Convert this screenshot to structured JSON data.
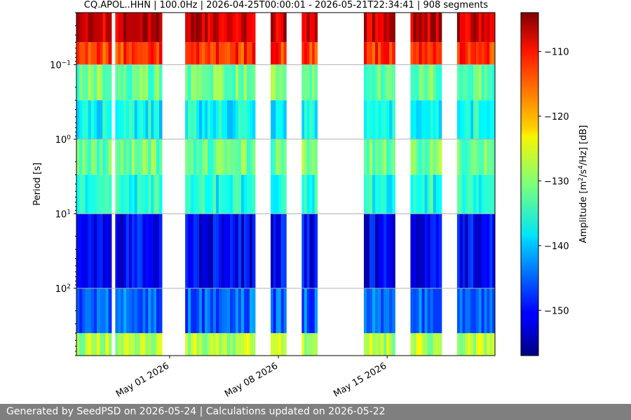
{
  "chart_data": {
    "type": "heatmap",
    "title": "CQ.APOL..HHN | 100.0Hz | 2026-04-25T00:00:01 - 2026-05-21T22:34:41 | 908 segments",
    "ylabel": "Period [s]",
    "y_scale": "log",
    "y_inverted": true,
    "ylim": [
      0.02,
      800
    ],
    "y_tick_labels": [
      {
        "value": 0.1,
        "label": "10^{-1}"
      },
      {
        "value": 1,
        "label": "10^{0}"
      },
      {
        "value": 10,
        "label": "10^{1}"
      },
      {
        "value": 100,
        "label": "10^{2}"
      }
    ],
    "xlim": [
      "2026-04-25T00:00:01",
      "2026-05-21T22:34:41"
    ],
    "x_ticks": [
      {
        "date": "2026-05-01",
        "label": "May 01 2026"
      },
      {
        "date": "2026-05-08",
        "label": "May 08 2026"
      },
      {
        "date": "2026-05-15",
        "label": "May 15 2026"
      }
    ],
    "data_segments": [
      {
        "start": "2026-04-25T00:00",
        "end": "2026-04-27T06:00"
      },
      {
        "start": "2026-04-27T12:00",
        "end": "2026-04-30T12:00"
      },
      {
        "start": "2026-05-02T00:00",
        "end": "2026-05-06T12:00"
      },
      {
        "start": "2026-05-07T12:00",
        "end": "2026-05-08T12:00"
      },
      {
        "start": "2026-05-09T12:00",
        "end": "2026-05-10T12:00"
      },
      {
        "start": "2026-05-13T12:00",
        "end": "2026-05-15T12:00"
      },
      {
        "start": "2026-05-16T12:00",
        "end": "2026-05-18T12:00"
      },
      {
        "start": "2026-05-19T12:00",
        "end": "2026-05-21T22:34"
      }
    ],
    "colorbar": {
      "label": "Amplitude [m^2/s^4/Hz] [dB]",
      "range": [
        -157,
        -104
      ],
      "ticks": [
        -110,
        -120,
        -130,
        -140,
        -150
      ],
      "colormap": "jet"
    },
    "grid": true
  },
  "footer": {
    "text": "Generated by SeedPSD on 2026-05-24 | Calculations updated on 2026-05-22"
  }
}
